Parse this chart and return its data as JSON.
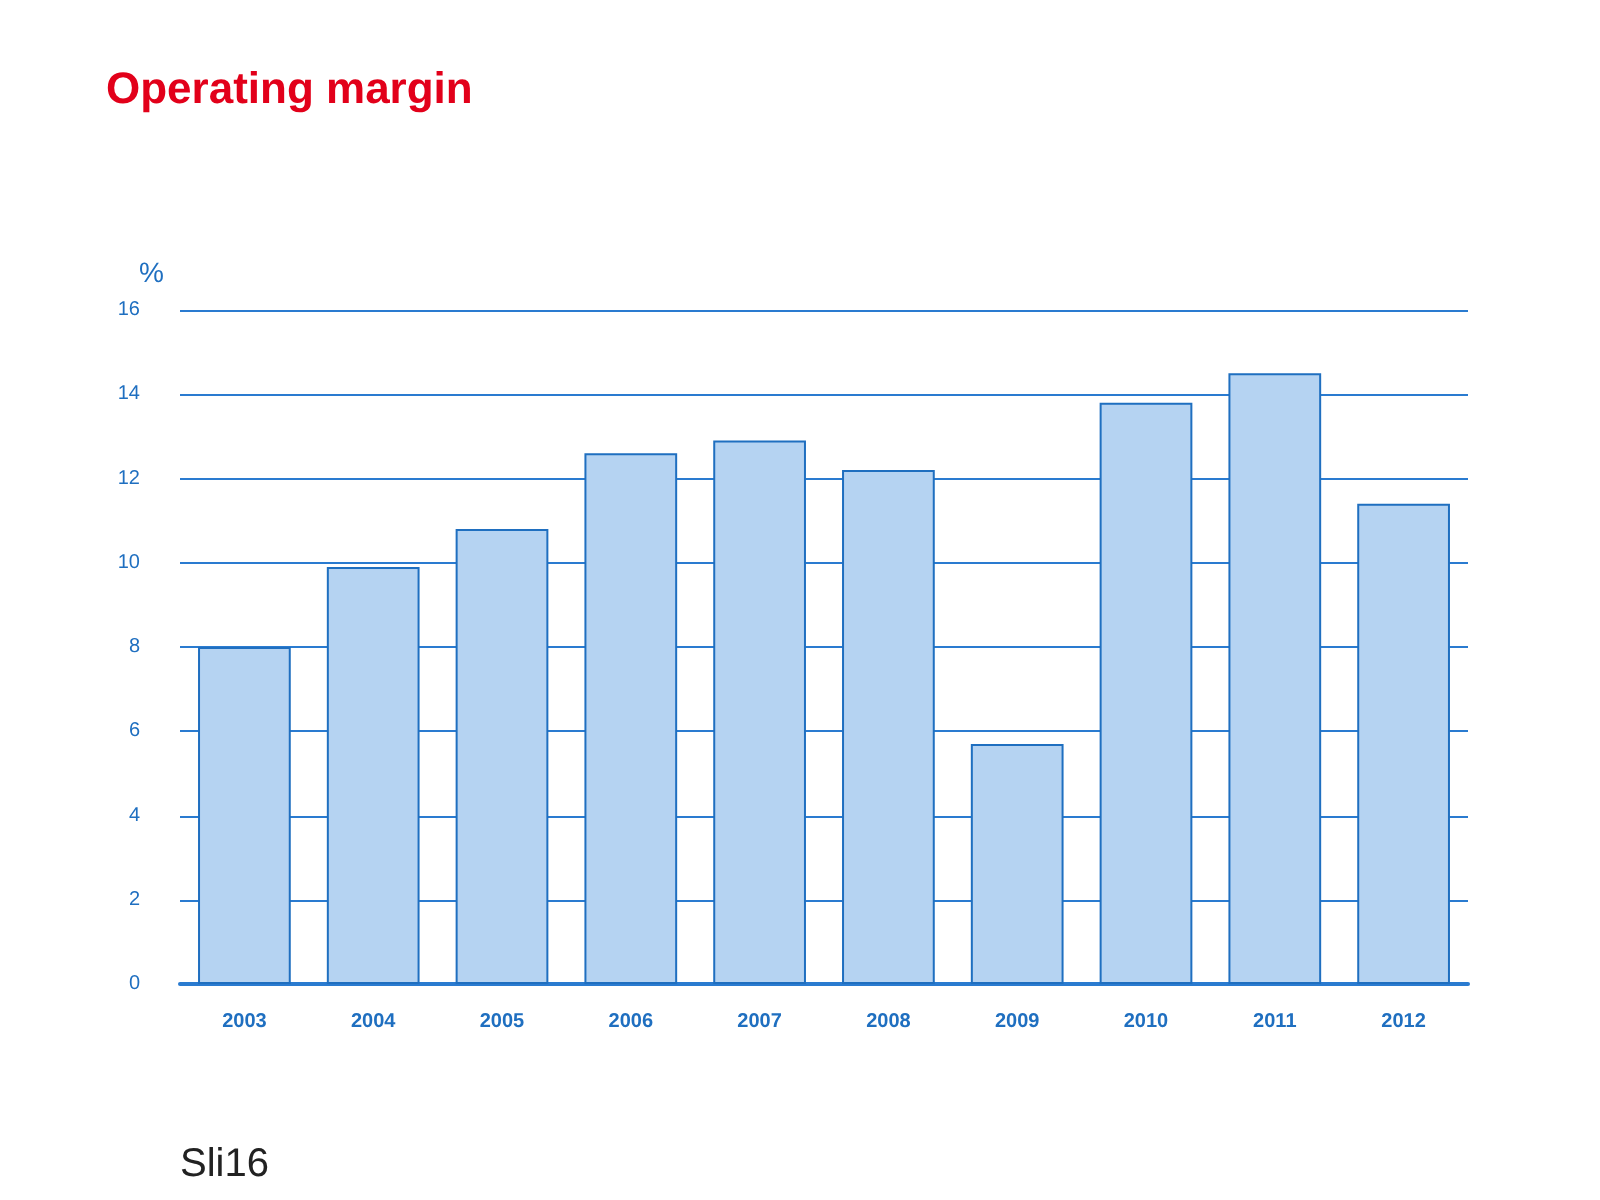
{
  "chart_data": {
    "type": "bar",
    "title": "Operating margin",
    "ylabel": "%",
    "categories": [
      "2003",
      "2004",
      "2005",
      "2006",
      "2007",
      "2008",
      "2009",
      "2010",
      "2011",
      "2012"
    ],
    "values": [
      8.0,
      9.9,
      10.8,
      12.6,
      12.9,
      12.2,
      5.7,
      13.8,
      14.5,
      11.4
    ],
    "color": "#b5d3f2",
    "ylim": [
      0,
      16
    ],
    "yticks": [
      0,
      2,
      4,
      6,
      8,
      10,
      12,
      14,
      16
    ],
    "grid": "y",
    "annotations": [
      "Sli16"
    ]
  }
}
